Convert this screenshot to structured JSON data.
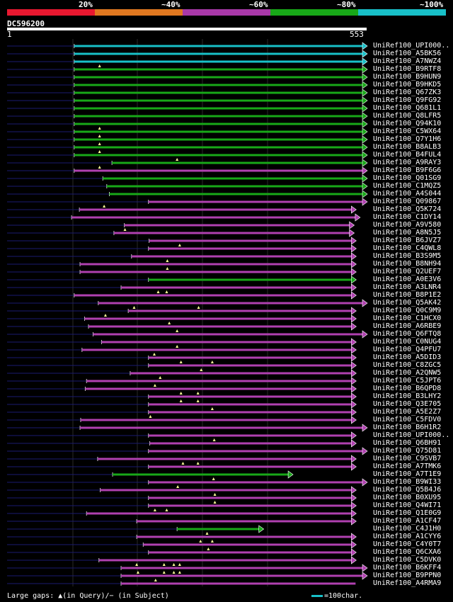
{
  "colors": {
    "bg": "#000000",
    "cyan": "#18c0c8",
    "green": "#18a818",
    "purple": "#b040b0",
    "gap": "#ffff99",
    "tail": "#1a1a70"
  },
  "legend": {
    "segments": [
      {
        "color": "#e81830",
        "label": "20%"
      },
      {
        "color": "#e07820",
        "label": "~40%"
      },
      {
        "color": "#a838a8",
        "label": "~60%"
      },
      {
        "color": "#18a818",
        "label": "~80%"
      },
      {
        "color": "#18c0c8",
        "label": "~100%"
      }
    ]
  },
  "query": {
    "name": "DC596200",
    "start": "1",
    "end": "553"
  },
  "footer": {
    "gaps_text": "Large gaps: ▲(in Query)/− (in Subject)",
    "scale_text": "=100char."
  },
  "chart_data": {
    "type": "alignment",
    "query_length": 553,
    "rows": [
      {
        "label": "UniRef100_UPI000..",
        "start": 104,
        "end": 553,
        "color": "cyan",
        "gaps": [],
        "arrow": true
      },
      {
        "label": "UniRef100_A5BK56",
        "start": 104,
        "end": 553,
        "color": "cyan",
        "gaps": [],
        "arrow": true
      },
      {
        "label": "UniRef100_A7NWZ4",
        "start": 104,
        "end": 553,
        "color": "cyan",
        "gaps": [],
        "arrow": true
      },
      {
        "label": "UniRef100_B9RTF8",
        "start": 104,
        "end": 553,
        "color": "green",
        "gaps": [
          143
        ],
        "arrow": true
      },
      {
        "label": "UniRef100_B9HUN9",
        "start": 104,
        "end": 553,
        "color": "green",
        "gaps": [],
        "arrow": true
      },
      {
        "label": "UniRef100_B9HKD5",
        "start": 104,
        "end": 553,
        "color": "green",
        "gaps": [],
        "arrow": true
      },
      {
        "label": "UniRef100_Q67ZK3",
        "start": 104,
        "end": 553,
        "color": "green",
        "gaps": [],
        "arrow": true
      },
      {
        "label": "UniRef100_Q9FG92",
        "start": 104,
        "end": 553,
        "color": "green",
        "gaps": [],
        "arrow": true
      },
      {
        "label": "UniRef100_Q681L1",
        "start": 104,
        "end": 553,
        "color": "green",
        "gaps": [],
        "arrow": true
      },
      {
        "label": "UniRef100_Q8LFR5",
        "start": 104,
        "end": 553,
        "color": "green",
        "gaps": [],
        "arrow": true
      },
      {
        "label": "UniRef100_Q94K10",
        "start": 104,
        "end": 553,
        "color": "green",
        "gaps": [],
        "arrow": true
      },
      {
        "label": "UniRef100_C5WX64",
        "start": 104,
        "end": 553,
        "color": "green",
        "gaps": [
          143
        ],
        "arrow": true
      },
      {
        "label": "UniRef100_Q7Y1H6",
        "start": 104,
        "end": 553,
        "color": "green",
        "gaps": [
          143
        ],
        "arrow": true
      },
      {
        "label": "UniRef100_B8ALB3",
        "start": 104,
        "end": 553,
        "color": "green",
        "gaps": [
          143
        ],
        "arrow": true
      },
      {
        "label": "UniRef100_B4FUL4",
        "start": 104,
        "end": 553,
        "color": "green",
        "gaps": [
          143
        ],
        "arrow": true
      },
      {
        "label": "UniRef100_A9RAY3",
        "start": 162,
        "end": 553,
        "color": "green",
        "gaps": [
          262
        ],
        "arrow": true
      },
      {
        "label": "UniRef100_B9F6G6",
        "start": 104,
        "end": 553,
        "color": "purple",
        "gaps": [
          143
        ],
        "arrow": true
      },
      {
        "label": "UniRef100_Q01SG9",
        "start": 148,
        "end": 553,
        "color": "green",
        "gaps": [],
        "arrow": true
      },
      {
        "label": "UniRef100_C1MQZ5",
        "start": 154,
        "end": 553,
        "color": "green",
        "gaps": [],
        "arrow": true
      },
      {
        "label": "UniRef100_A4S044",
        "start": 158,
        "end": 553,
        "color": "green",
        "gaps": [],
        "arrow": true
      },
      {
        "label": "UniRef100_Q09867",
        "start": 218,
        "end": 553,
        "color": "purple",
        "gaps": [],
        "arrow": true
      },
      {
        "label": "UniRef100_Q5K724",
        "start": 112,
        "end": 536,
        "color": "purple",
        "gaps": [
          150
        ],
        "arrow": true
      },
      {
        "label": "UniRef100_C1DY14",
        "start": 100,
        "end": 542,
        "color": "purple",
        "gaps": [],
        "arrow": true
      },
      {
        "label": "UniRef100_A9V580",
        "start": 181,
        "end": 533,
        "color": "purple",
        "gaps": [],
        "arrow": true
      },
      {
        "label": "UniRef100_A8N5J5",
        "start": 165,
        "end": 533,
        "color": "purple",
        "gaps": [
          182
        ],
        "arrow": true
      },
      {
        "label": "UniRef100_B6JVZ7",
        "start": 219,
        "end": 536,
        "color": "purple",
        "gaps": [],
        "arrow": true
      },
      {
        "label": "UniRef100_C4QWL8",
        "start": 218,
        "end": 536,
        "color": "purple",
        "gaps": [
          266
        ],
        "arrow": true
      },
      {
        "label": "UniRef100_B3S9M5",
        "start": 192,
        "end": 536,
        "color": "purple",
        "gaps": [],
        "arrow": true
      },
      {
        "label": "UniRef100_B8NH94",
        "start": 113,
        "end": 536,
        "color": "purple",
        "gaps": [
          247
        ],
        "arrow": true
      },
      {
        "label": "UniRef100_Q2UEF7",
        "start": 113,
        "end": 536,
        "color": "purple",
        "gaps": [
          247
        ],
        "arrow": true
      },
      {
        "label": "UniRef100_A0E3V6",
        "start": 218,
        "end": 536,
        "color": "green",
        "gaps": [],
        "arrow": true
      },
      {
        "label": "UniRef100_A3LNR4",
        "start": 176,
        "end": 536,
        "color": "purple",
        "gaps": [],
        "arrow": true
      },
      {
        "label": "UniRef100_B8P1E2",
        "start": 104,
        "end": 536,
        "color": "purple",
        "gaps": [
          233,
          246
        ],
        "arrow": true
      },
      {
        "label": "UniRef100_Q5AK42",
        "start": 141,
        "end": 553,
        "color": "purple",
        "gaps": [],
        "arrow": true
      },
      {
        "label": "UniRef100_Q0C9M9",
        "start": 187,
        "end": 536,
        "color": "purple",
        "gaps": [
          196,
          295
        ],
        "arrow": true
      },
      {
        "label": "UniRef100_C1HCX0",
        "start": 120,
        "end": 536,
        "color": "purple",
        "gaps": [
          152
        ],
        "arrow": true
      },
      {
        "label": "UniRef100_A6RBE9",
        "start": 126,
        "end": 536,
        "color": "purple",
        "gaps": [
          250
        ],
        "arrow": true
      },
      {
        "label": "UniRef100_Q6FTQ8",
        "start": 133,
        "end": 553,
        "color": "purple",
        "gaps": [
          262
        ],
        "arrow": true
      },
      {
        "label": "UniRef100_C0NUG4",
        "start": 146,
        "end": 536,
        "color": "purple",
        "gaps": [],
        "arrow": true
      },
      {
        "label": "UniRef100_Q4PFU7",
        "start": 116,
        "end": 536,
        "color": "purple",
        "gaps": [
          262
        ],
        "arrow": true
      },
      {
        "label": "UniRef100_A5DID3",
        "start": 218,
        "end": 536,
        "color": "purple",
        "gaps": [
          227
        ],
        "arrow": true
      },
      {
        "label": "UniRef100_C8ZGC5",
        "start": 218,
        "end": 536,
        "color": "purple",
        "gaps": [
          268,
          316
        ],
        "arrow": true
      },
      {
        "label": "UniRef100_A2QNW5",
        "start": 190,
        "end": 536,
        "color": "purple",
        "gaps": [
          299
        ],
        "arrow": true
      },
      {
        "label": "UniRef100_C5JPT6",
        "start": 123,
        "end": 536,
        "color": "purple",
        "gaps": [
          236
        ],
        "arrow": true
      },
      {
        "label": "UniRef100_B6QPD8",
        "start": 121,
        "end": 536,
        "color": "purple",
        "gaps": [
          228
        ],
        "arrow": true
      },
      {
        "label": "UniRef100_B3LHY2",
        "start": 218,
        "end": 536,
        "color": "purple",
        "gaps": [
          268,
          294
        ],
        "arrow": true
      },
      {
        "label": "UniRef100_Q3E705",
        "start": 218,
        "end": 536,
        "color": "purple",
        "gaps": [
          268,
          294
        ],
        "arrow": true
      },
      {
        "label": "UniRef100_A5E2Z7",
        "start": 218,
        "end": 536,
        "color": "purple",
        "gaps": [
          316
        ],
        "arrow": true
      },
      {
        "label": "UniRef100_C5FDV0",
        "start": 114,
        "end": 536,
        "color": "purple",
        "gaps": [
          221
        ],
        "arrow": true
      },
      {
        "label": "UniRef100_B6H1R2",
        "start": 113,
        "end": 553,
        "color": "purple",
        "gaps": [],
        "arrow": true
      },
      {
        "label": "UniRef100_UPI000..",
        "start": 218,
        "end": 536,
        "color": "purple",
        "gaps": [],
        "arrow": true
      },
      {
        "label": "UniRef100_Q6BH91",
        "start": 220,
        "end": 536,
        "color": "purple",
        "gaps": [
          319
        ],
        "arrow": true
      },
      {
        "label": "UniRef100_Q75D81",
        "start": 218,
        "end": 553,
        "color": "purple",
        "gaps": [],
        "arrow": true
      },
      {
        "label": "UniRef100_C9SVB7",
        "start": 140,
        "end": 536,
        "color": "purple",
        "gaps": [],
        "arrow": true
      },
      {
        "label": "UniRef100_A7TMK6",
        "start": 218,
        "end": 536,
        "color": "purple",
        "gaps": [
          271,
          294
        ],
        "arrow": true
      },
      {
        "label": "UniRef100_A7T1E9",
        "start": 163,
        "end": 439,
        "color": "green",
        "gaps": [],
        "arrow": true
      },
      {
        "label": "UniRef100_B9WI33",
        "start": 218,
        "end": 553,
        "color": "purple",
        "gaps": [
          318
        ],
        "arrow": true
      },
      {
        "label": "UniRef100_Q5B4J6",
        "start": 144,
        "end": 536,
        "color": "purple",
        "gaps": [
          263
        ],
        "arrow": true
      },
      {
        "label": "UniRef100_B0XU95",
        "start": 218,
        "end": 536,
        "color": "purple",
        "gaps": [
          320
        ],
        "arrow": true
      },
      {
        "label": "UniRef100_Q4WI71",
        "start": 218,
        "end": 536,
        "color": "purple",
        "gaps": [
          320
        ],
        "arrow": true
      },
      {
        "label": "UniRef100_Q1E0G9",
        "start": 123,
        "end": 536,
        "color": "purple",
        "gaps": [
          228,
          246
        ],
        "arrow": true
      },
      {
        "label": "UniRef100_A1CF47",
        "start": 200,
        "end": 536,
        "color": "purple",
        "gaps": [],
        "arrow": true
      },
      {
        "label": "UniRef100_C4J1H0",
        "start": 262,
        "end": 394,
        "color": "green",
        "gaps": [],
        "arrow": true
      },
      {
        "label": "UniRef100_A1CYY6",
        "start": 200,
        "end": 536,
        "color": "purple",
        "gaps": [
          308
        ],
        "arrow": true
      },
      {
        "label": "UniRef100_C4Y0T7",
        "start": 210,
        "end": 536,
        "color": "purple",
        "gaps": [
          298,
          316
        ],
        "arrow": true
      },
      {
        "label": "UniRef100_Q6CXA6",
        "start": 218,
        "end": 536,
        "color": "purple",
        "gaps": [
          310
        ],
        "arrow": true
      },
      {
        "label": "UniRef100_C5DVK0",
        "start": 142,
        "end": 536,
        "color": "purple",
        "gaps": [],
        "arrow": true
      },
      {
        "label": "UniRef100_B6KFF4",
        "start": 176,
        "end": 553,
        "color": "purple",
        "gaps": [
          200,
          242,
          257,
          266
        ],
        "arrow": true
      },
      {
        "label": "UniRef100_B9PPN0",
        "start": 176,
        "end": 553,
        "color": "purple",
        "gaps": [
          202,
          242,
          257,
          266
        ],
        "arrow": true
      },
      {
        "label": "UniRef100_A4RMA9",
        "start": 176,
        "end": 536,
        "color": "purple",
        "gaps": [
          229
        ],
        "arrow": false
      }
    ]
  }
}
